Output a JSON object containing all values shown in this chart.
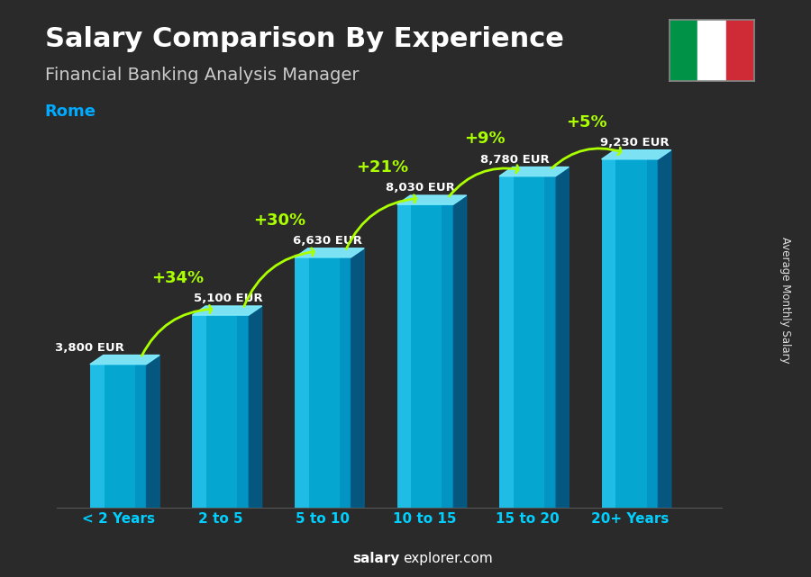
{
  "title": "Salary Comparison By Experience",
  "subtitle": "Financial Banking Analysis Manager",
  "city": "Rome",
  "categories": [
    "< 2 Years",
    "2 to 5",
    "5 to 10",
    "10 to 15",
    "15 to 20",
    "20+ Years"
  ],
  "values": [
    3800,
    5100,
    6630,
    8030,
    8780,
    9230
  ],
  "labels": [
    "3,800 EUR",
    "5,100 EUR",
    "6,630 EUR",
    "8,030 EUR",
    "8,780 EUR",
    "9,230 EUR"
  ],
  "pct_labels": [
    "+34%",
    "+30%",
    "+21%",
    "+9%",
    "+5%"
  ],
  "bar_color_front": "#00b8e8",
  "bar_color_light": "#40d8ff",
  "bar_color_dark": "#0088bb",
  "bar_color_top": "#80ecff",
  "bar_color_side": "#006090",
  "bg_color": "#2a2a2a",
  "ylabel": "Average Monthly Salary",
  "ylim": [
    0,
    11000
  ],
  "flag_green": "#009246",
  "flag_white": "#ffffff",
  "flag_red": "#ce2b37",
  "lime_green": "#aaff00",
  "city_color": "#00aaff",
  "footer_bold": "salary",
  "footer_regular": "explorer.com"
}
